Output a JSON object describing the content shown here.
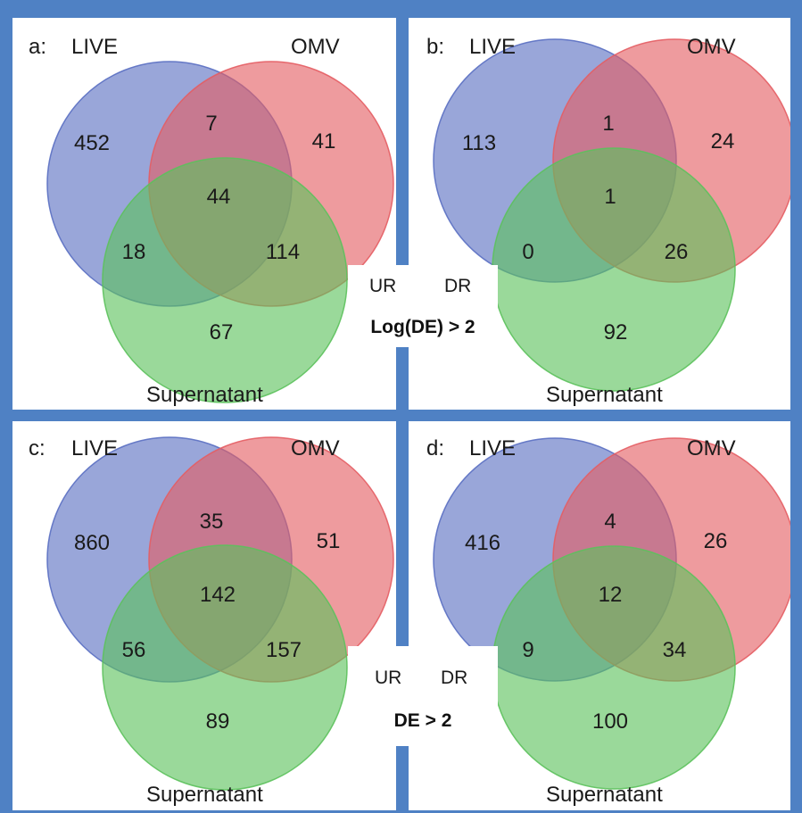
{
  "colors": {
    "live": "#5a6fc2",
    "omv": "#e45d63",
    "supernatant": "#5cc15c",
    "frame": "#4f81c4"
  },
  "panels": [
    {
      "id": "a",
      "letter": "a:",
      "set_a": "LIVE",
      "set_b": "OMV",
      "set_c": "Supernatant",
      "only_a": "452",
      "ab": "7",
      "only_b": "41",
      "abc": "44",
      "ac": "18",
      "bc": "114",
      "only_c": "67"
    },
    {
      "id": "b",
      "letter": "b:",
      "set_a": "LIVE",
      "set_b": "OMV",
      "set_c": "Supernatant",
      "only_a": "113",
      "ab": "1",
      "only_b": "24",
      "abc": "1",
      "ac": "0",
      "bc": "26",
      "only_c": "92"
    },
    {
      "id": "c",
      "letter": "c:",
      "set_a": "LIVE",
      "set_b": "OMV",
      "set_c": "Supernatant",
      "only_a": "860",
      "ab": "35",
      "only_b": "51",
      "abc": "142",
      "ac": "56",
      "bc": "157",
      "only_c": "89"
    },
    {
      "id": "d",
      "letter": "d:",
      "set_a": "LIVE",
      "set_b": "OMV",
      "set_c": "Supernatant",
      "only_a": "416",
      "ab": "4",
      "only_b": "26",
      "abc": "12",
      "ac": "9",
      "bc": "34",
      "only_c": "100"
    }
  ],
  "center_top": {
    "ur": "UR",
    "dr": "DR",
    "threshold": "Log(DE) > 2"
  },
  "center_bottom": {
    "ur": "UR",
    "dr": "DR",
    "threshold": "DE > 2"
  }
}
